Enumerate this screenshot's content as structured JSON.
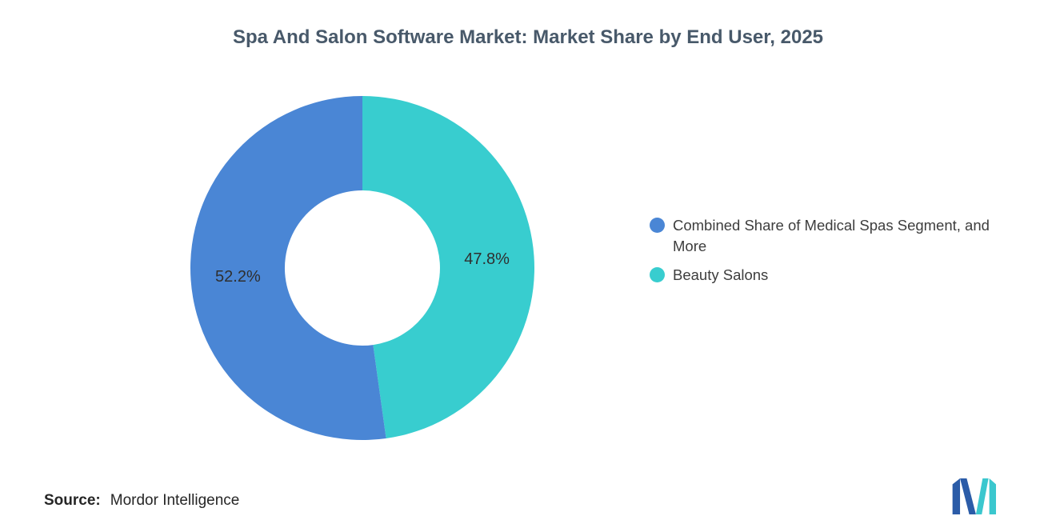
{
  "title": "Spa And Salon Software Market: Market Share by End User, 2025",
  "source": {
    "label": "Source:",
    "value": "Mordor Intelligence"
  },
  "logo": {
    "name": "mordor-intelligence-logo",
    "blue": "#2b5ca8",
    "teal": "#3bc7ce"
  },
  "colors": {
    "background": "#ffffff",
    "title_text": "#48596a",
    "label_text": "#2f2f2f",
    "blue_segment": "#4a86d5",
    "teal_segment": "#38cdcf"
  },
  "legend": [
    {
      "label": "Combined Share of Medical Spas Segment, and More",
      "color": "#4a86d5"
    },
    {
      "label": "Beauty Salons",
      "color": "#38cdcf"
    }
  ],
  "chart_data": {
    "type": "pie",
    "subtype": "donut",
    "title": "Spa And Salon Software Market: Market Share by End User, 2025",
    "slices": [
      {
        "label": "Combined Share of Medical Spas Segment, and More",
        "value": 52.2,
        "display": "52.2%",
        "color": "#4a86d5"
      },
      {
        "label": "Beauty Salons",
        "value": 47.8,
        "display": "47.8%",
        "color": "#38cdcf"
      }
    ],
    "layout": {
      "start": "top",
      "direction": "clockwise",
      "clockwise_order": [
        1,
        0
      ],
      "inner_radius_ratio": 0.45,
      "legend_position": "right",
      "data_labels": "inside"
    }
  }
}
